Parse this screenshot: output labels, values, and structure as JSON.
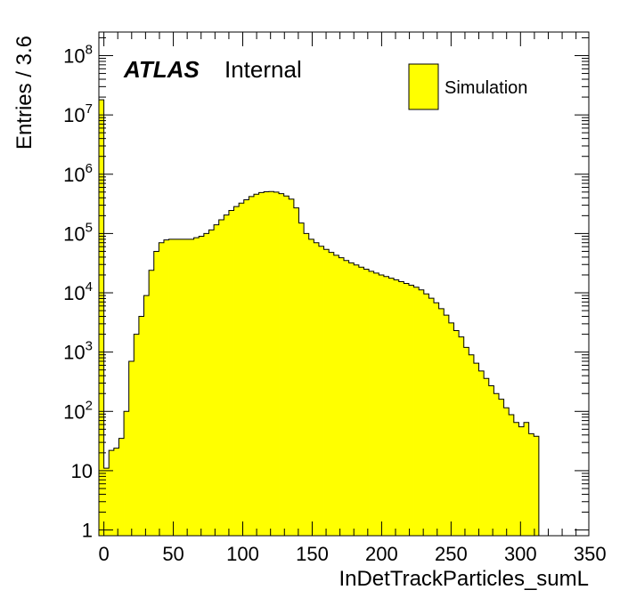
{
  "chart_data": {
    "type": "histogram",
    "xlabel": "InDetTrackParticles_sumL",
    "ylabel": "Entries / 3.6",
    "xlim": [
      -3.6,
      349.2
    ],
    "ylim": [
      0.8,
      250000000
    ],
    "log_y": true,
    "bin_width": 3.6,
    "x_start": -3.6,
    "x_ticks": [
      0,
      50,
      100,
      150,
      200,
      250,
      300,
      350
    ],
    "y_ticks": [
      {
        "value": 1,
        "base": "1",
        "exp": ""
      },
      {
        "value": 10,
        "base": "10",
        "exp": ""
      },
      {
        "value": 100,
        "base": "10",
        "exp": "2"
      },
      {
        "value": 1000,
        "base": "10",
        "exp": "3"
      },
      {
        "value": 10000,
        "base": "10",
        "exp": "4"
      },
      {
        "value": 100000,
        "base": "10",
        "exp": "5"
      },
      {
        "value": 1000000,
        "base": "10",
        "exp": "6"
      },
      {
        "value": 10000000,
        "base": "10",
        "exp": "7"
      },
      {
        "value": 100000000,
        "base": "10",
        "exp": "8"
      }
    ],
    "fill_color": "#ffff00",
    "line_color": "#000000",
    "legend": {
      "label": "Simulation",
      "placement": "top-right"
    },
    "label": {
      "experiment": "ATLAS",
      "status": "Internal"
    },
    "values": [
      18000000,
      11,
      22,
      24,
      35,
      100,
      700,
      2000,
      4000,
      9000,
      24000,
      50000,
      70000,
      78000,
      80000,
      80000,
      80000,
      80000,
      80000,
      85000,
      90000,
      100000,
      115000,
      140000,
      170000,
      205000,
      245000,
      285000,
      325000,
      370000,
      420000,
      460000,
      490000,
      505000,
      510000,
      500000,
      470000,
      430000,
      380000,
      270000,
      150000,
      100000,
      80000,
      70000,
      61000,
      54000,
      48000,
      43000,
      39000,
      35000,
      32000,
      29500,
      27000,
      25000,
      23000,
      21500,
      20000,
      18800,
      17600,
      16500,
      15400,
      14400,
      13400,
      12400,
      11200,
      9600,
      8100,
      6800,
      5400,
      4200,
      3100,
      2300,
      1800,
      1200,
      900,
      650,
      480,
      360,
      270,
      200,
      160,
      115,
      88,
      65,
      55,
      65,
      42,
      38
    ]
  }
}
